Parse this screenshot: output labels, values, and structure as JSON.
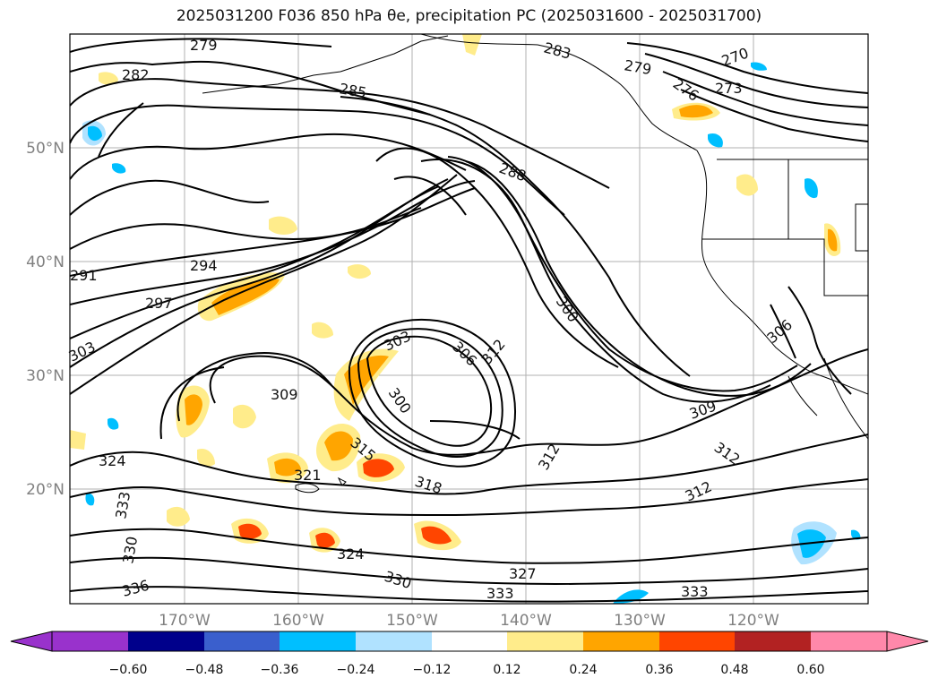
{
  "title": "2025031200 F036 850 hPa θe, precipitation PC (2025031600 - 2025031700)",
  "map": {
    "lat_labels": [
      "50°N",
      "40°N",
      "30°N",
      "20°N"
    ],
    "lon_labels": [
      "170°W",
      "160°W",
      "150°W",
      "140°W",
      "130°W",
      "120°W"
    ],
    "contour_labels": [
      "279",
      "282",
      "285",
      "288",
      "291",
      "294",
      "297",
      "300",
      "303",
      "306",
      "309",
      "312",
      "315",
      "318",
      "321",
      "324",
      "327",
      "330",
      "333",
      "336",
      "270",
      "273",
      "276",
      "283"
    ]
  },
  "colorbar": {
    "ticks": [
      "−0.60",
      "−0.48",
      "−0.36",
      "−0.24",
      "−0.12",
      "0.12",
      "0.24",
      "0.36",
      "0.48",
      "0.60"
    ],
    "colors": [
      "#9932cc",
      "#00008b",
      "#3a5fcd",
      "#00bfff",
      "#b0e2ff",
      "#ffffff",
      "#ffec8b",
      "#ffa500",
      "#ff4500",
      "#b22222",
      "#ff88aa"
    ]
  }
}
